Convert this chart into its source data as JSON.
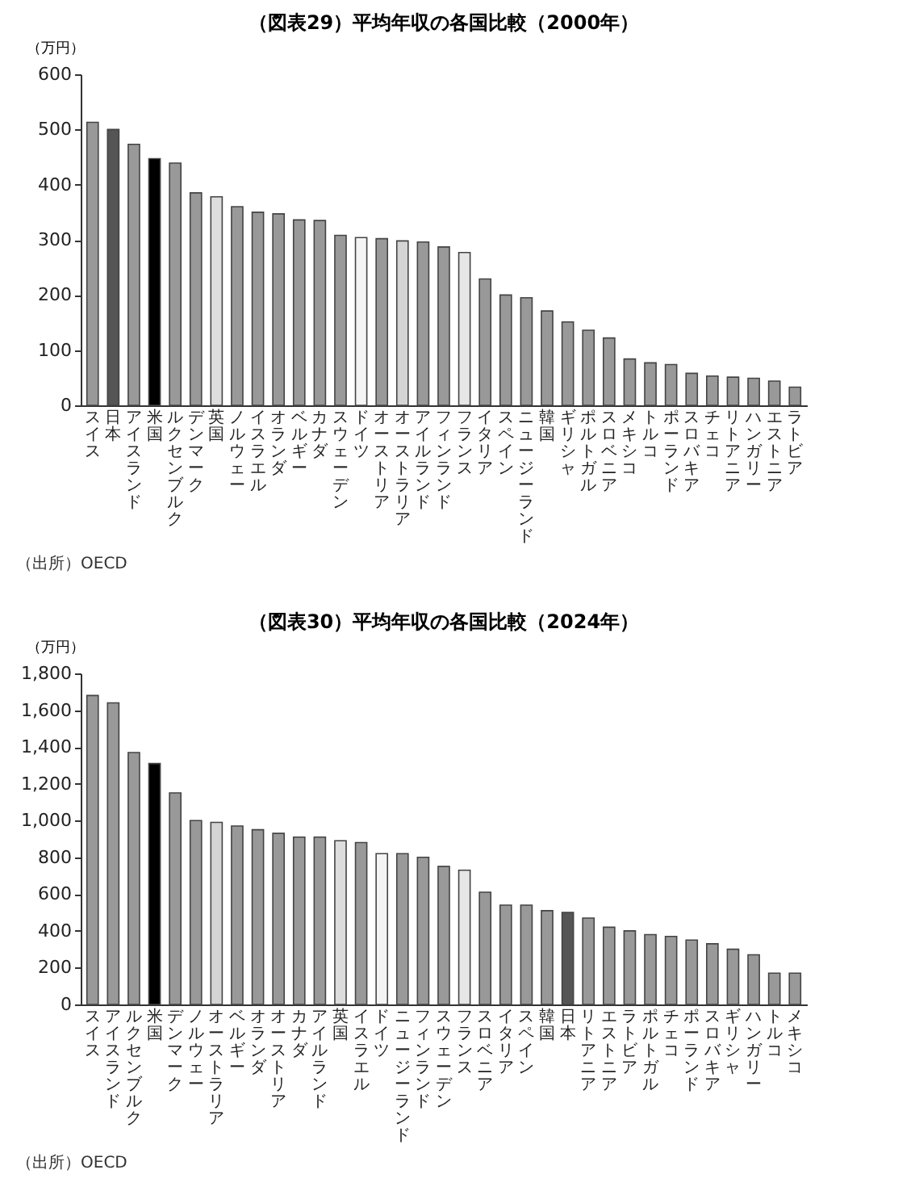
{
  "chart_data": [
    {
      "type": "bar",
      "title": "（図表29）平均年収の各国比較（2000年）",
      "ylabel": "（万円）",
      "annotations": [
        "（出所）OECD"
      ],
      "categories": [
        "スイス",
        "日本",
        "アイスランド",
        "米国",
        "ルクセンブルク",
        "デンマーク",
        "英国",
        "ノルウェー",
        "イスラエル",
        "オランダ",
        "ベルギー",
        "カナダ",
        "スウェーデン",
        "ドイツ",
        "オーストリア",
        "オーストラリア",
        "アイルランド",
        "フィンランド",
        "フランス",
        "イタリア",
        "スペイン",
        "ニュージーランド",
        "韓国",
        "ギリシャ",
        "ポルトガル",
        "スロベニア",
        "メキシコ",
        "トルコ",
        "ポーランド",
        "スロバキア",
        "チェコ",
        "リトアニア",
        "ハンガリー",
        "エストニア",
        "ラトビア"
      ],
      "values": [
        513,
        500,
        473,
        447,
        439,
        385,
        378,
        360,
        350,
        347,
        336,
        335,
        308,
        304,
        302,
        298,
        296,
        287,
        277,
        229,
        200,
        195,
        171,
        151,
        136,
        122,
        84,
        77,
        74,
        58,
        53,
        51,
        49,
        44,
        33
      ],
      "colors": [
        "#999999",
        "#555555",
        "#999999",
        "#000000",
        "#999999",
        "#999999",
        "#dddddd",
        "#999999",
        "#999999",
        "#999999",
        "#999999",
        "#999999",
        "#999999",
        "#f4f4f4",
        "#999999",
        "#d4d4d4",
        "#999999",
        "#999999",
        "#e6e6e6",
        "#999999",
        "#999999",
        "#999999",
        "#999999",
        "#999999",
        "#999999",
        "#999999",
        "#999999",
        "#999999",
        "#999999",
        "#999999",
        "#999999",
        "#999999",
        "#999999",
        "#999999",
        "#999999"
      ],
      "ylim": [
        0,
        600
      ],
      "yticks": [
        0,
        100,
        200,
        300,
        400,
        500,
        600
      ]
    },
    {
      "type": "bar",
      "title": "（図表30）平均年収の各国比較（2024年）",
      "ylabel": "（万円）",
      "annotations": [
        "（出所）OECD"
      ],
      "categories": [
        "スイス",
        "アイスランド",
        "ルクセンブルク",
        "米国",
        "デンマーク",
        "ノルウェー",
        "オーストラリア",
        "ベルギー",
        "オランダ",
        "オーストリア",
        "カナダ",
        "アイルランド",
        "英国",
        "イスラエル",
        "ドイツ",
        "ニュージーランド",
        "フィンランド",
        "スウェーデン",
        "フランス",
        "スロベニア",
        "イタリア",
        "スペイン",
        "韓国",
        "日本",
        "リトアニア",
        "エストニア",
        "ラトビア",
        "ポルトガル",
        "チェコ",
        "ポーランド",
        "スロバキア",
        "ギリシャ",
        "ハンガリー",
        "トルコ",
        "メキシコ"
      ],
      "values": [
        1680,
        1640,
        1370,
        1310,
        1150,
        1000,
        990,
        970,
        950,
        930,
        910,
        910,
        890,
        880,
        820,
        820,
        800,
        750,
        730,
        610,
        540,
        540,
        510,
        500,
        470,
        420,
        400,
        380,
        370,
        350,
        330,
        300,
        270,
        170,
        170
      ],
      "colors": [
        "#999999",
        "#999999",
        "#999999",
        "#000000",
        "#999999",
        "#999999",
        "#d4d4d4",
        "#999999",
        "#999999",
        "#999999",
        "#999999",
        "#999999",
        "#dddddd",
        "#999999",
        "#f4f4f4",
        "#999999",
        "#999999",
        "#999999",
        "#e6e6e6",
        "#999999",
        "#999999",
        "#999999",
        "#999999",
        "#555555",
        "#999999",
        "#999999",
        "#999999",
        "#999999",
        "#999999",
        "#999999",
        "#999999",
        "#999999",
        "#999999",
        "#999999",
        "#999999"
      ],
      "ylim": [
        0,
        1800
      ],
      "yticks": [
        0,
        200,
        400,
        600,
        800,
        {
          "value": 1000,
          "label": "1,000"
        },
        {
          "value": 1200,
          "label": "1,200"
        },
        {
          "value": 1400,
          "label": "1,400"
        },
        {
          "value": 1600,
          "label": "1,600"
        },
        {
          "value": 1800,
          "label": "1,800"
        }
      ]
    }
  ]
}
